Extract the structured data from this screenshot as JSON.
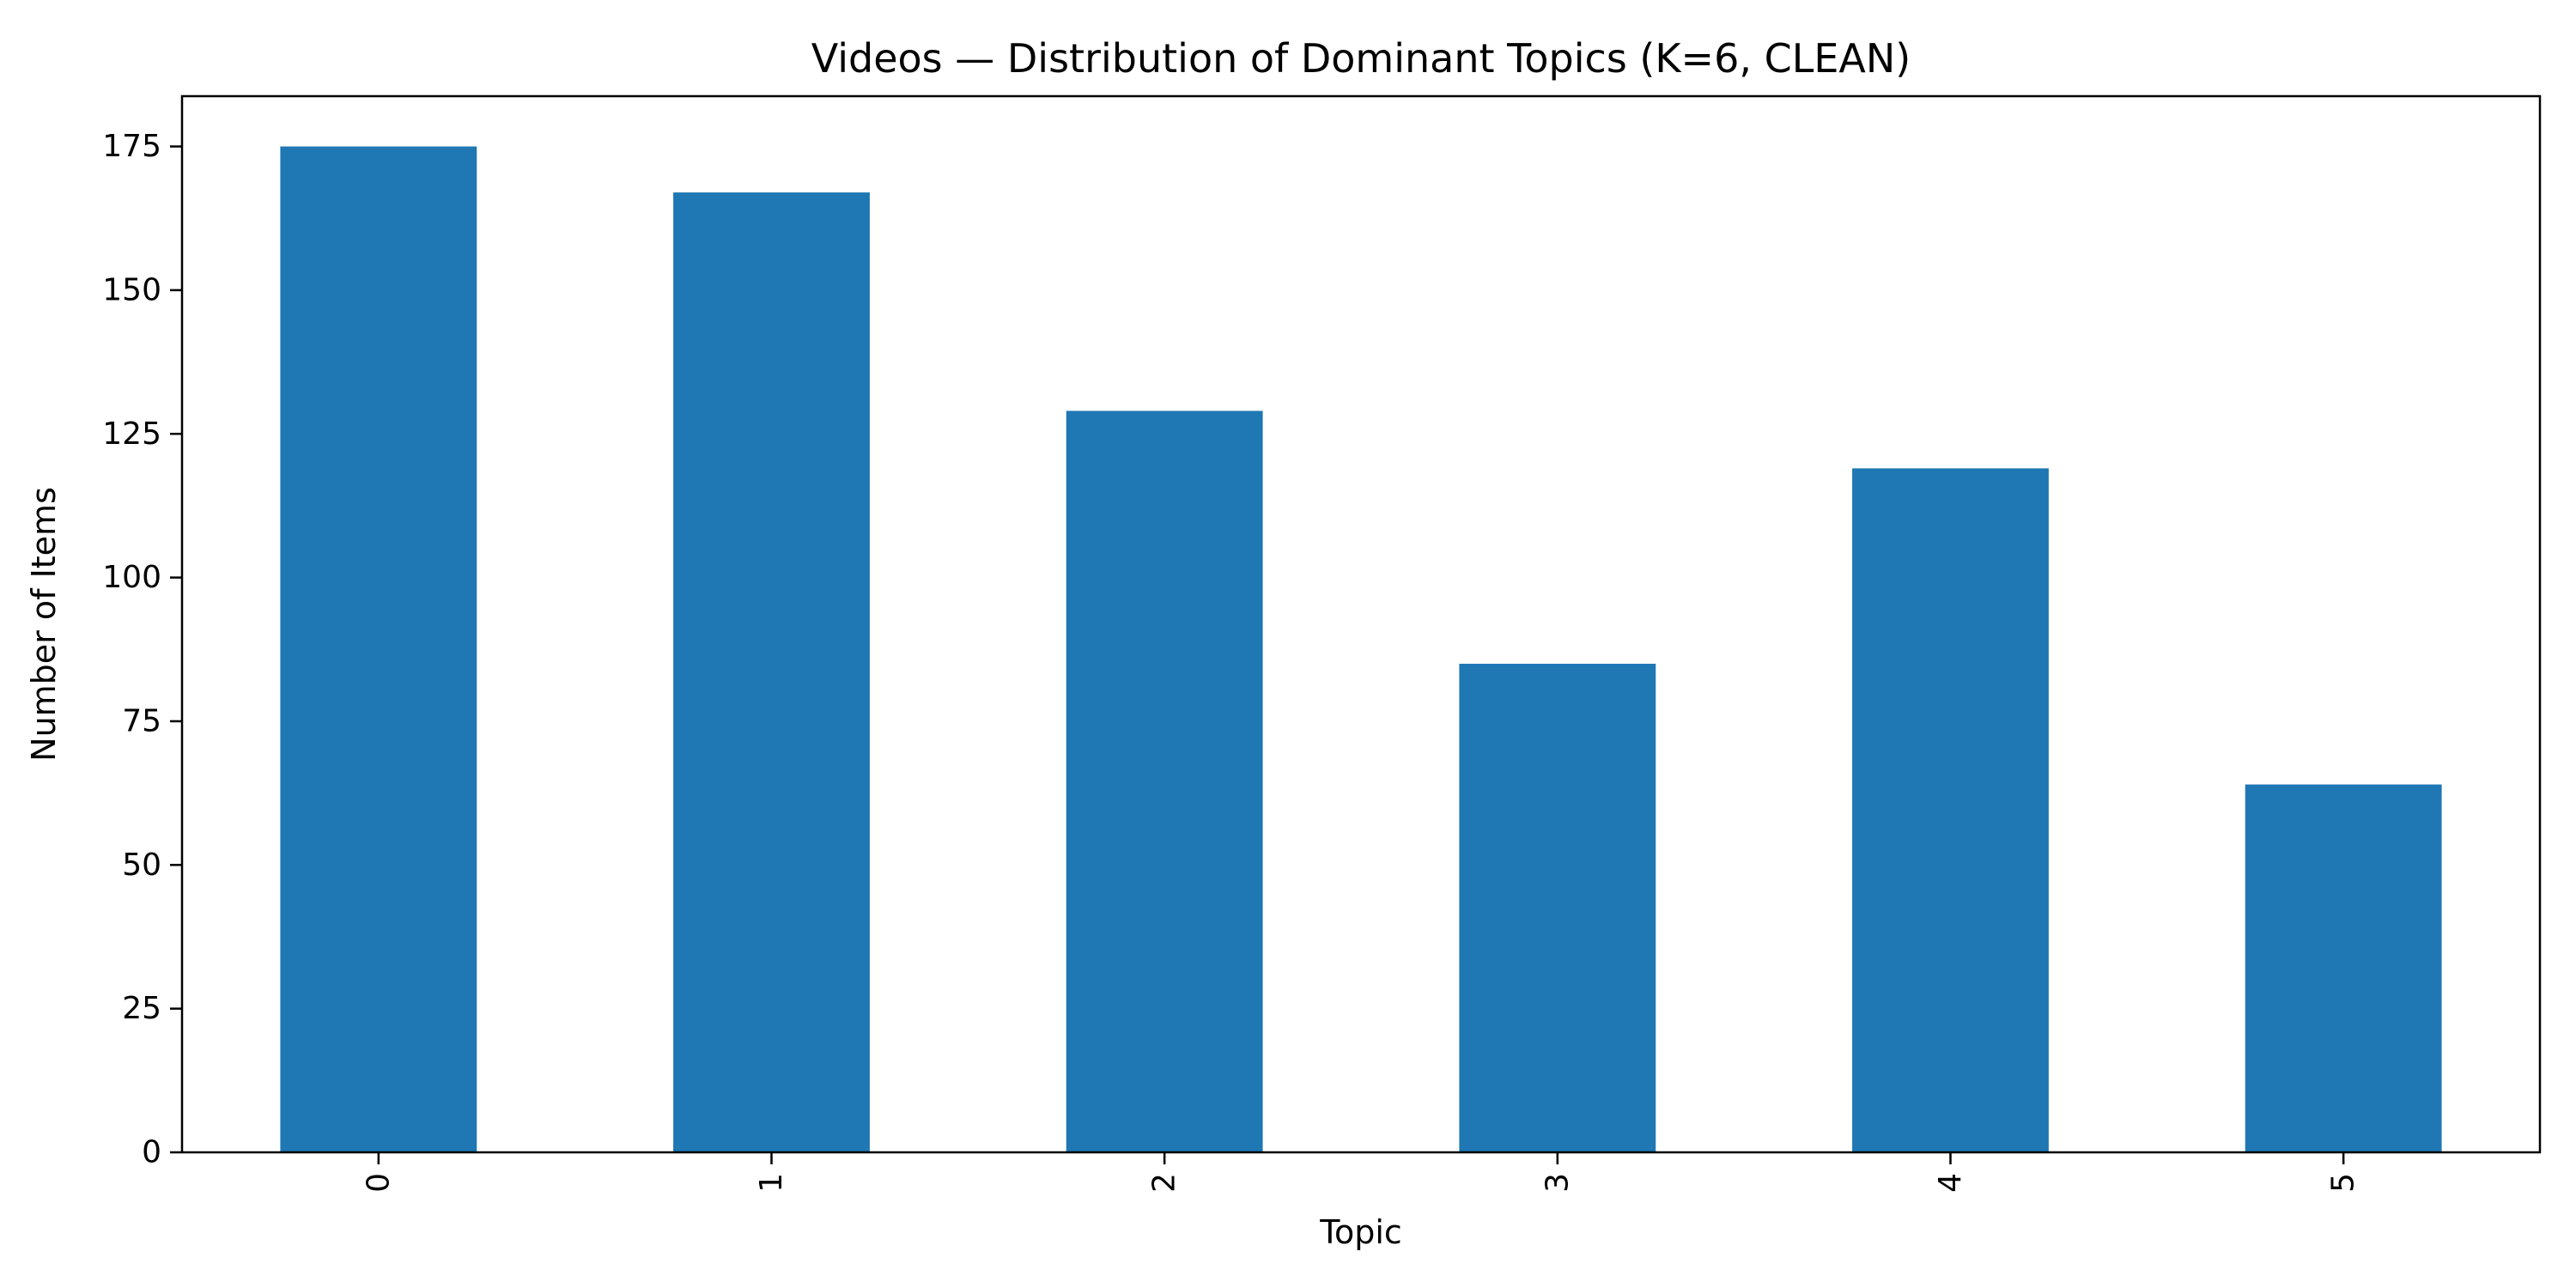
{
  "chart_data": {
    "type": "bar",
    "title": "Videos — Distribution of Dominant Topics (K=6, CLEAN)",
    "xlabel": "Topic",
    "ylabel": "Number of Items",
    "categories": [
      "0",
      "1",
      "2",
      "3",
      "4",
      "5"
    ],
    "values": [
      175,
      167,
      129,
      85,
      119,
      64
    ],
    "ylim": [
      0,
      183.75
    ],
    "yticks": [
      0,
      25,
      50,
      75,
      100,
      125,
      150,
      175
    ],
    "xtick_rotation": 90,
    "grid": false,
    "legend": false,
    "bar_color": "#1f77b4"
  }
}
